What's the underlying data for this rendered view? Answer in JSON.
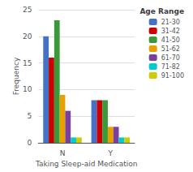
{
  "chart_data": {
    "type": "bar",
    "xlabel": "Taking Sleep-aid Medication",
    "ylabel": "Frequency",
    "categories": [
      "N",
      "Y"
    ],
    "series": [
      {
        "name": "21-30",
        "color": "#4472c4",
        "values": [
          20,
          8
        ]
      },
      {
        "name": "31-42",
        "color": "#cc0000",
        "values": [
          16,
          8
        ]
      },
      {
        "name": "41-50",
        "color": "#3a9a3a",
        "values": [
          23,
          8
        ]
      },
      {
        "name": "51-62",
        "color": "#e8a000",
        "values": [
          9,
          3
        ]
      },
      {
        "name": "61-70",
        "color": "#7b3f9e",
        "values": [
          6,
          3
        ]
      },
      {
        "name": "71-82",
        "color": "#00cccc",
        "values": [
          1,
          1
        ]
      },
      {
        "name": "91-100",
        "color": "#cccc00",
        "values": [
          1,
          1
        ]
      }
    ],
    "ylim": [
      0,
      25
    ],
    "yticks": [
      0,
      5,
      10,
      15,
      20,
      25
    ],
    "grid": true,
    "legend": "upper right",
    "legend_title": "Age Range"
  }
}
